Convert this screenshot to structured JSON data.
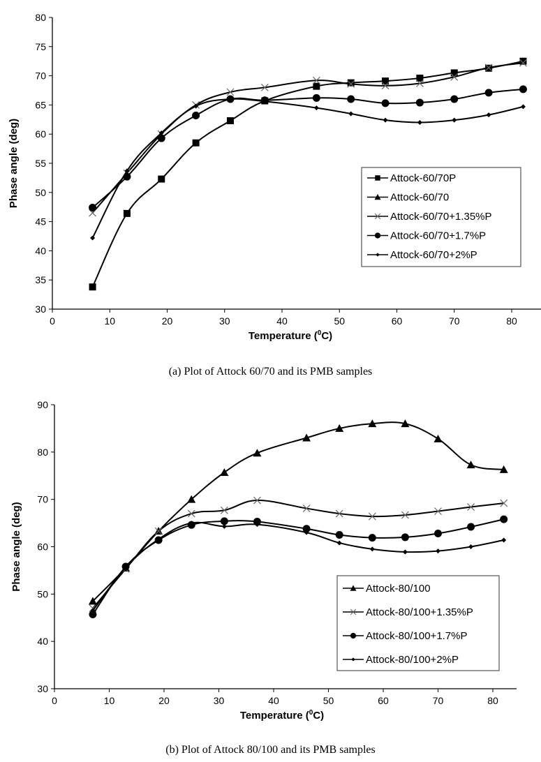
{
  "captions": [
    "(a) Plot of Attock 60/70 and its PMB samples",
    "(b) Plot of Attock 80/100 and its PMB samples"
  ],
  "chart_data": [
    {
      "type": "line",
      "title": "",
      "xlabel": "Temperature (0C)",
      "xlabel_main": "Temperature (",
      "xlabel_sup": "0",
      "xlabel_end": "C)",
      "ylabel": "Phase angle (deg)",
      "xlim": [
        0,
        80
      ],
      "ylim": [
        30,
        80
      ],
      "xticks": [
        0,
        10,
        20,
        30,
        40,
        50,
        60,
        70,
        80
      ],
      "yticks": [
        30,
        35,
        40,
        45,
        50,
        55,
        60,
        65,
        70,
        75,
        80
      ],
      "grid": false,
      "legend_position": "center-right",
      "x": [
        7,
        13,
        19,
        25,
        31,
        37,
        46,
        52,
        58,
        64,
        70,
        76,
        82
      ],
      "series": [
        {
          "name": "Attock-60/70P",
          "marker": "square",
          "values": [
            33.8,
            46.4,
            52.3,
            58.5,
            62.3,
            65.7,
            68.2,
            68.8,
            69.1,
            69.6,
            70.5,
            71.3,
            72.5
          ]
        },
        {
          "name": "Attock-60/70",
          "marker": "triangle",
          "values": []
        },
        {
          "name": "Attock-60/70+1.35%P",
          "marker": "x",
          "values": [
            46.5,
            53.3,
            60.0,
            65.0,
            67.2,
            68.0,
            69.2,
            68.6,
            68.3,
            68.7,
            69.8,
            71.4,
            72.2
          ]
        },
        {
          "name": "Attock-60/70+1.7%P",
          "marker": "circle",
          "values": [
            47.4,
            52.7,
            59.3,
            63.2,
            66.0,
            65.8,
            66.2,
            66.0,
            65.3,
            65.4,
            66.0,
            67.1,
            67.7
          ]
        },
        {
          "name": "Attock-60/70+2%P",
          "marker": "diamond",
          "values": [
            42.2,
            53.7,
            60.2,
            64.8,
            66.0,
            65.6,
            64.5,
            63.5,
            62.4,
            62.0,
            62.4,
            63.3,
            64.7
          ]
        }
      ]
    },
    {
      "type": "line",
      "title": "",
      "xlabel": "Temperature (0C)",
      "xlabel_main": "Temperature (",
      "xlabel_sup": "0",
      "xlabel_end": "C)",
      "ylabel": "Phase angle (deg)",
      "xlim": [
        0,
        80
      ],
      "ylim": [
        30,
        90
      ],
      "xticks": [
        0,
        10,
        20,
        30,
        40,
        50,
        60,
        70,
        80
      ],
      "yticks": [
        30,
        40,
        50,
        60,
        70,
        80,
        90
      ],
      "grid": false,
      "legend_position": "bottom-right",
      "x": [
        7,
        13,
        19,
        25,
        31,
        37,
        46,
        52,
        58,
        64,
        70,
        76,
        82
      ],
      "series": [
        {
          "name": "Attock-80/100",
          "marker": "triangle",
          "values": [
            48.5,
            55.5,
            63.3,
            70.0,
            75.7,
            79.8,
            83.0,
            85.0,
            86.0,
            86.0,
            82.8,
            77.3,
            76.3
          ]
        },
        {
          "name": "Attock-80/100+1.35%P",
          "marker": "x",
          "values": [
            47.0,
            55.3,
            63.3,
            67.0,
            67.7,
            69.8,
            68.1,
            67.0,
            66.4,
            66.7,
            67.5,
            68.4,
            69.2
          ]
        },
        {
          "name": "Attock-80/100+1.7%P",
          "marker": "circle",
          "values": [
            45.7,
            55.8,
            61.4,
            64.6,
            65.4,
            65.3,
            63.8,
            62.5,
            61.9,
            62.0,
            62.8,
            64.2,
            65.8
          ]
        },
        {
          "name": "Attock-80/100+2%P",
          "marker": "diamond",
          "values": [
            46.5,
            55.6,
            61.6,
            65.0,
            64.3,
            64.7,
            63.0,
            60.8,
            59.5,
            58.9,
            59.1,
            60.0,
            61.4
          ]
        }
      ]
    }
  ]
}
